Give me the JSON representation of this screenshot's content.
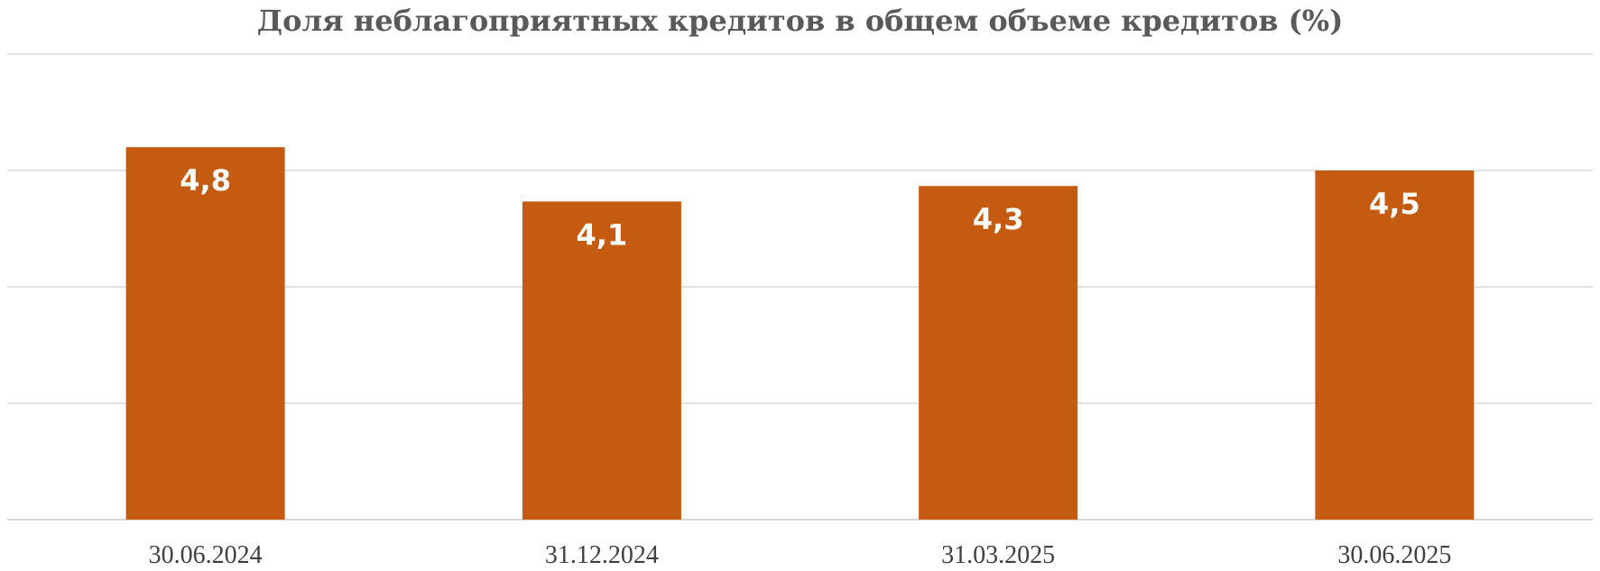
{
  "chart_data": {
    "type": "bar",
    "title": "Доля неблагоприятных кредитов в общем объеме кредитов (%)",
    "categories": [
      "30.06.2024",
      "31.12.2024",
      "31.03.2025",
      "30.06.2025"
    ],
    "values": [
      4.8,
      4.1,
      4.3,
      4.5
    ],
    "data_labels": [
      "4,8",
      "4,1",
      "4,3",
      "4,5"
    ],
    "ylim": [
      0,
      6
    ],
    "grid": true,
    "bar_color": "#C55A11",
    "grid_color": "#D9D9D9"
  }
}
